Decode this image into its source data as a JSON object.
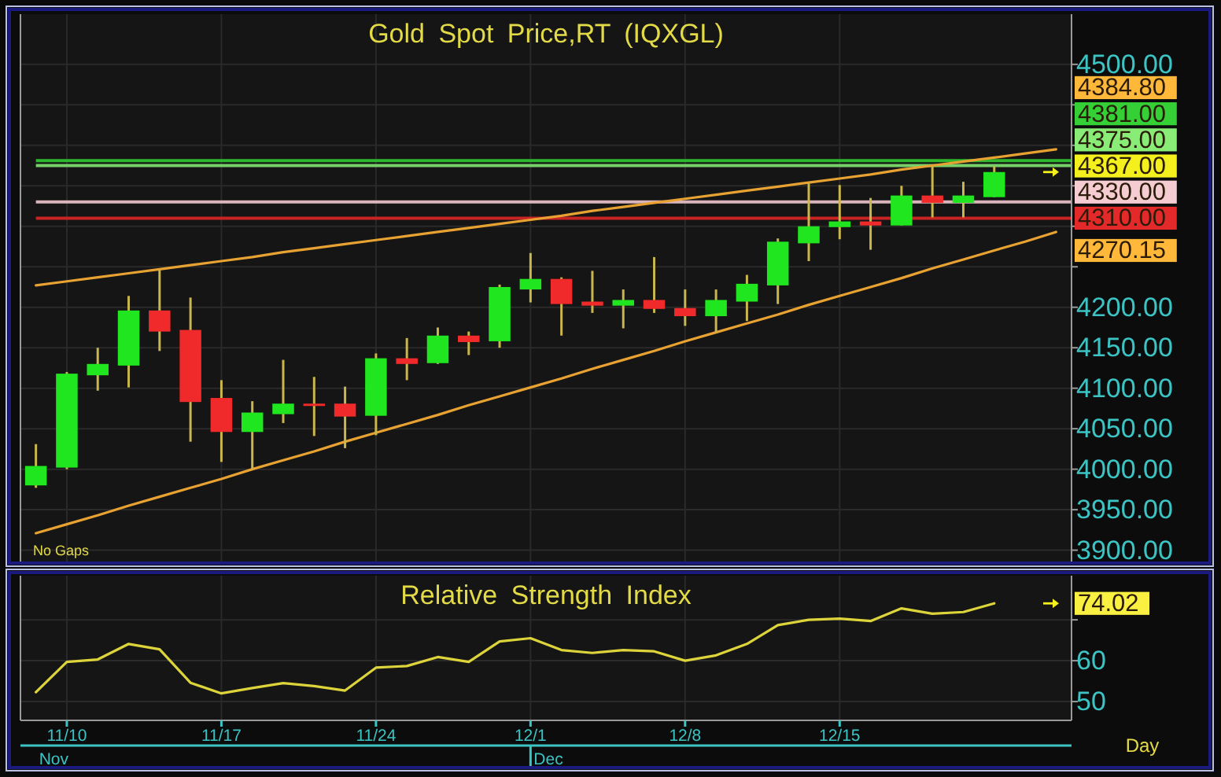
{
  "chart_data": [
    {
      "type": "candlestick",
      "title": "Gold Spot Price,RT (IQXGL)",
      "categories": [
        null,
        null,
        null,
        null,
        null,
        null,
        null,
        null,
        null,
        null,
        null,
        null,
        null,
        null,
        null,
        null,
        null,
        null,
        null,
        null,
        null,
        null,
        null,
        null,
        null,
        null,
        null,
        null,
        null,
        null,
        null,
        null,
        null,
        null
      ],
      "ohlc": [
        [
          3980,
          4031,
          3977,
          4004
        ],
        [
          4002,
          4120,
          4000,
          4118
        ],
        [
          4116,
          4150,
          4097,
          4130
        ],
        [
          4128,
          4214,
          4101,
          4196
        ],
        [
          4196,
          4246,
          4146,
          4170
        ],
        [
          4172,
          4212,
          4034,
          4083
        ],
        [
          4088,
          4110,
          4009,
          4046
        ],
        [
          4046,
          4084,
          4000,
          4070
        ],
        [
          4068,
          4135,
          4057,
          4081
        ],
        [
          4081,
          4114,
          4041,
          4079
        ],
        [
          4081,
          4102,
          4026,
          4065
        ],
        [
          4066,
          4143,
          4042,
          4137
        ],
        [
          4137,
          4162,
          4110,
          4130
        ],
        [
          4131,
          4175,
          4130,
          4165
        ],
        [
          4165,
          4170,
          4141,
          4157
        ],
        [
          4158,
          4228,
          4150,
          4225
        ],
        [
          4222,
          4267,
          4206,
          4235
        ],
        [
          4235,
          4237,
          4165,
          4204
        ],
        [
          4207,
          4245,
          4193,
          4202
        ],
        [
          4202,
          4222,
          4174,
          4209
        ],
        [
          4209,
          4262,
          4193,
          4198
        ],
        [
          4199,
          4222,
          4177,
          4189
        ],
        [
          4189,
          4222,
          4169,
          4209
        ],
        [
          4207,
          4240,
          4183,
          4229
        ],
        [
          4227,
          4285,
          4204,
          4281
        ],
        [
          4279,
          4353,
          4257,
          4300
        ],
        [
          4299,
          4351,
          4284,
          4306
        ],
        [
          4306,
          4335,
          4271,
          4301
        ],
        [
          4301,
          4350,
          4301,
          4338
        ],
        [
          4338,
          4374,
          4311,
          4329
        ],
        [
          4329,
          4355,
          4311,
          4338
        ],
        [
          4336,
          4374,
          4336,
          4367
        ],
        null,
        null
      ],
      "colors": [
        "#1fe61f",
        "#1fe61f",
        "#1fe61f",
        "#1fe61f",
        "#f02a2a",
        "#f02a2a",
        "#f02a2a",
        "#1fe61f",
        "#1fe61f",
        "#f02a2a",
        "#f02a2a",
        "#1fe61f",
        "#f02a2a",
        "#1fe61f",
        "#f02a2a",
        "#1fe61f",
        "#1fe61f",
        "#f02a2a",
        "#f02a2a",
        "#1fe61f",
        "#f02a2a",
        "#f02a2a",
        "#1fe61f",
        "#1fe61f",
        "#1fe61f",
        "#1fe61f",
        "#1fe61f",
        "#f02a2a",
        "#1fe61f",
        "#f02a2a",
        "#1fe61f",
        "#1fe61f",
        null,
        null
      ],
      "ylim": [
        3886,
        4562
      ],
      "yticks": [
        {
          "value": 3900,
          "label": "3900.00"
        },
        {
          "value": 3950,
          "label": "3950.00"
        },
        {
          "value": 4000,
          "label": "4000.00"
        },
        {
          "value": 4050,
          "label": "4050.00"
        },
        {
          "value": 4100,
          "label": "4100.00"
        },
        {
          "value": 4150,
          "label": "4150.00"
        },
        {
          "value": 4200,
          "label": "4200.00"
        },
        {
          "value": 4250,
          "label": null
        },
        {
          "value": 4300,
          "label": null
        },
        {
          "value": 4350,
          "label": null
        },
        {
          "value": 4400,
          "label": null
        },
        {
          "value": 4450,
          "label": null
        },
        {
          "value": 4500,
          "label": "4500.00"
        }
      ],
      "grid": true,
      "tick_labels": "y",
      "ref_lines": [
        {
          "axis": "y",
          "value": 4381,
          "label": "4381.00",
          "color": "#2fb82f"
        },
        {
          "axis": "y",
          "value": 4375,
          "label": "4375.00",
          "color": "#78d068"
        },
        {
          "axis": "y",
          "value": 4330,
          "label": "4330.00",
          "color": "#d9b4ba"
        },
        {
          "axis": "y",
          "value": 4310,
          "label": "4310.00",
          "color": "#c82424"
        }
      ],
      "series": [
        {
          "type": "line",
          "color": "#e8a232",
          "values": [
            4227,
            4232,
            4237,
            4242,
            4247,
            4252,
            4257,
            4262,
            4268,
            4273,
            4278,
            4283,
            4288,
            4293,
            4298,
            4303,
            4308,
            4313,
            4319,
            4324,
            4329,
            4334,
            4339,
            4344,
            4349,
            4354,
            4359,
            4364,
            4370,
            4375,
            4380,
            4384.8,
            4390,
            4395
          ]
        },
        {
          "type": "line",
          "color": "#e8a232",
          "values": [
            3921,
            3932,
            3943,
            3955,
            3966,
            3977,
            3988,
            4000,
            4011,
            4022,
            4034,
            4045,
            4056,
            4067,
            4079,
            4090,
            4101,
            4112,
            4124,
            4135,
            4146,
            4158,
            4169,
            4180,
            4191,
            4203,
            4214,
            4225,
            4236,
            4248,
            4259,
            4270.15,
            4281,
            4293
          ]
        }
      ],
      "annotations": [
        "4384.80",
        "4270.15",
        "4367.00",
        "No Gaps"
      ]
    },
    {
      "type": "line",
      "title": "Relative Strength Index",
      "xlabel": "Day",
      "categories": [
        null,
        "11/10",
        null,
        null,
        null,
        null,
        "11/17",
        null,
        null,
        null,
        null,
        "11/24",
        null,
        null,
        null,
        null,
        "12/1",
        null,
        null,
        null,
        null,
        "12/8",
        null,
        null,
        null,
        null,
        "12/15",
        null,
        null,
        null,
        null,
        null,
        null,
        null
      ],
      "values": [
        52.3,
        59.7,
        60.3,
        64.1,
        62.8,
        54.6,
        52.0,
        53.3,
        54.5,
        53.8,
        52.7,
        58.3,
        58.7,
        60.9,
        59.7,
        64.7,
        65.5,
        62.6,
        61.9,
        62.6,
        62.3,
        60.0,
        61.3,
        64.1,
        68.7,
        70.0,
        70.3,
        69.7,
        72.8,
        71.5,
        71.9,
        74.02,
        null,
        null
      ],
      "color": "#dcd43a",
      "ylim": [
        45.4,
        80.8
      ],
      "yticks": [
        50,
        60,
        {
          "value": 70,
          "label": null
        }
      ],
      "grid": true,
      "annotations": [
        "74.02",
        "Nov",
        "Dec"
      ]
    }
  ]
}
